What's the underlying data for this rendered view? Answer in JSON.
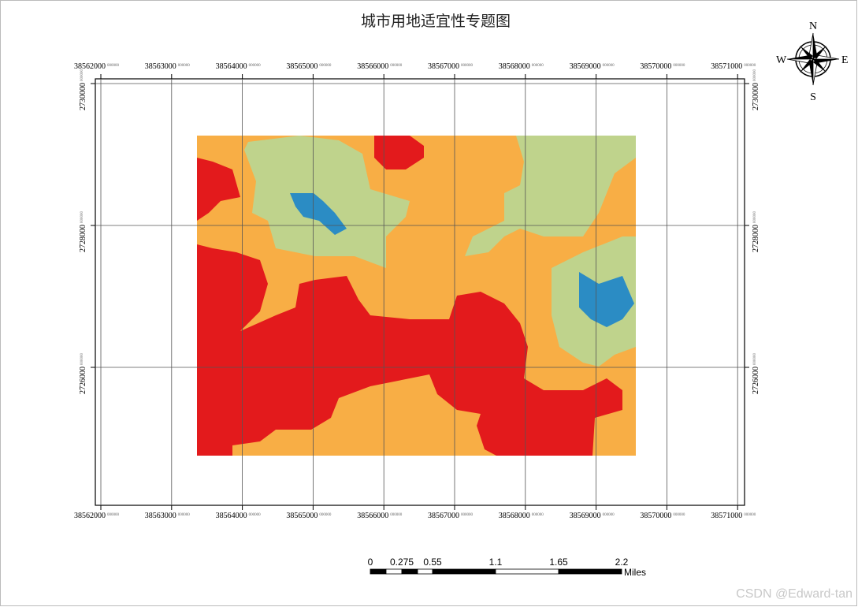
{
  "title": "城市用地适宜性专题图",
  "compass": {
    "n": "N",
    "s": "S",
    "e": "E",
    "w": "W"
  },
  "x_labels": [
    {
      "main": "38562000",
      "sup": "000000"
    },
    {
      "main": "38563000",
      "sup": "000000"
    },
    {
      "main": "38564000",
      "sup": "000000"
    },
    {
      "main": "38565000",
      "sup": "000000"
    },
    {
      "main": "38566000",
      "sup": "000000"
    },
    {
      "main": "38567000",
      "sup": "000000"
    },
    {
      "main": "38568000",
      "sup": "000000"
    },
    {
      "main": "38569000",
      "sup": "000000"
    },
    {
      "main": "38570000",
      "sup": "000000"
    },
    {
      "main": "38571000",
      "sup": "000000"
    }
  ],
  "y_labels": [
    {
      "main": "2730000",
      "sup": "000000"
    },
    {
      "main": "2728000",
      "sup": "000000"
    },
    {
      "main": "2726000",
      "sup": "000000"
    }
  ],
  "scale_bar": {
    "labels": [
      "0",
      "0.275",
      "0.55",
      "1.1",
      "1.65",
      "2.2"
    ],
    "unit": "Miles"
  },
  "watermark": "CSDN @Edward-tan"
}
